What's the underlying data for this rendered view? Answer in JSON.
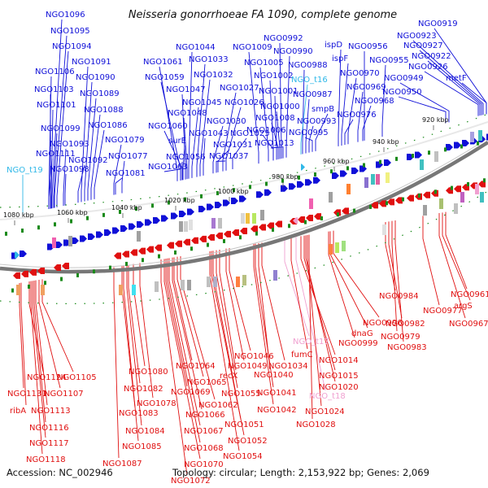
{
  "title": "Neisseria gonorrhoeae FA 1090, complete genome",
  "footer": {
    "accession": "Accession: NC_002946",
    "summary": "Topology: circular; Length: 2,153,922 bp; Genes: 2,069"
  },
  "colors": {
    "forward": "#1010d8",
    "reverse": "#e01010",
    "trna_fwd": "#30b8e8",
    "trna_rev": "#f0a0d0",
    "backbone": "#777777",
    "tick_green": "#1a8a1a"
  },
  "scale_ticks": [
    "1080 kbp",
    "1060 kbp",
    "1040 kbp",
    "1020 kbp",
    "1000 kbp",
    "980 kbp",
    "960 kbp",
    "940 kbp",
    "920 kbp"
  ],
  "top_labels": [
    "NGO1096",
    "NGO1095",
    "NGO1094",
    "NGO1091",
    "NGO1106",
    "NGO1090",
    "NGO1103",
    "NGO1089",
    "NGO1101",
    "NGO1088",
    "NGO1086",
    "NGO1099",
    "NGO1093",
    "NGO1079",
    "NGO1111",
    "NGO1077",
    "NGO1092",
    "NGO_t19",
    "NGO1098",
    "NGO1081",
    "NGO1044",
    "NGO1061",
    "NGO1033",
    "NGO1059",
    "NGO1032",
    "NGO1047",
    "NGO1027",
    "NGO1045",
    "NGO1048",
    "NGO1026",
    "NGO1060",
    "NGO1030",
    "NGO1043",
    "NGO1025",
    "surE",
    "NGO1031",
    "NGO1056",
    "NGO1037",
    "NGO1063",
    "NGO1009",
    "NGO0992",
    "NGO0990",
    "NGO1005",
    "NGO0988",
    "NGO1002",
    "NGO_t16",
    "NGO1001",
    "NGO0987",
    "NGO1000",
    "smpB",
    "NGO1008",
    "NGO0993",
    "NGO1006",
    "NGO0995",
    "NGO1013",
    "ispD",
    "NGO0956",
    "ispF",
    "NGO0955",
    "NGO0970",
    "NGO0969",
    "NGO0968",
    "NGO0976",
    "NGO0919",
    "NGO0923",
    "NGO0927",
    "NGO0922",
    "NGO0926",
    "NGO0949",
    "metF",
    "NGO0950"
  ],
  "bottom_labels": [
    "NGO1105",
    "NGO1124",
    "NGO1107",
    "NGO1131",
    "NGO1113",
    "ribA",
    "NGO1116",
    "NGO1117",
    "NGO1118",
    "NGO1080",
    "NGO1082",
    "NGO1078",
    "NGO1083",
    "NGO1084",
    "NGO1085",
    "NGO1087",
    "NGO1064",
    "NGO1065",
    "NGO1069",
    "NGO1062",
    "NGO1066",
    "NGO1067",
    "NGO1068",
    "NGO1070",
    "NGO1072",
    "NGO1046",
    "NGO1049",
    "recX",
    "NGO1055",
    "NGO1051",
    "NGO1052",
    "NGO1054",
    "NGO1034",
    "NGO1040",
    "NGO1041",
    "NGO1042",
    "NGO_t17",
    "fumC",
    "NGO1014",
    "NGO1015",
    "NGO1020",
    "NGO_t18",
    "NGO1024",
    "NGO1028",
    "NGO0996",
    "dnaG",
    "NGO0999",
    "NGO0984",
    "NGO0982",
    "NGO0979",
    "NGO0983",
    "NGO0977",
    "NGO0961",
    "argS",
    "NGO0967"
  ]
}
